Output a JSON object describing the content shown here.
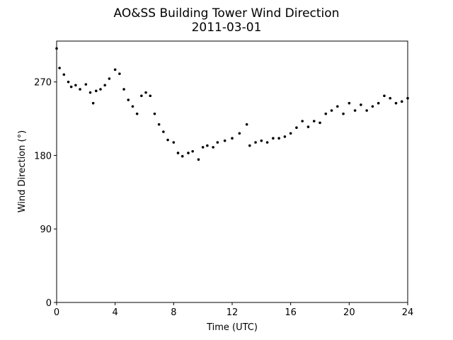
{
  "chart_data": {
    "type": "scatter",
    "title": "AO&SS Building Tower Wind Direction",
    "subtitle": "2011-03-01",
    "x_label": "Time (UTC)",
    "y_label": "Wind Direction (°)",
    "color": "#000000",
    "xlim": [
      0,
      24
    ],
    "xticks": [
      0,
      4,
      8,
      12,
      16,
      20,
      24
    ],
    "ylim": [
      0,
      320
    ],
    "yticks": [
      0,
      90,
      180,
      270
    ],
    "x": [
      0,
      0.2,
      0.5,
      0.8,
      1.0,
      1.3,
      1.6,
      2.0,
      2.3,
      2.5,
      2.7,
      3.0,
      3.3,
      3.6,
      4.0,
      4.3,
      4.6,
      4.9,
      5.2,
      5.5,
      5.8,
      6.1,
      6.4,
      6.7,
      7.0,
      7.3,
      7.6,
      8.0,
      8.3,
      8.6,
      9.0,
      9.3,
      9.7,
      10.0,
      10.3,
      10.7,
      11.0,
      11.5,
      12.0,
      12.5,
      13.0,
      13.2,
      13.6,
      14.0,
      14.4,
      14.8,
      15.2,
      15.6,
      16.0,
      16.4,
      16.8,
      17.2,
      17.6,
      18.0,
      18.4,
      18.8,
      19.2,
      19.6,
      20.0,
      20.4,
      20.8,
      21.2,
      21.6,
      22.0,
      22.4,
      22.8,
      23.2,
      23.6,
      24.0
    ],
    "values": [
      311,
      287,
      279,
      270,
      264,
      266,
      261,
      267,
      257,
      244,
      259,
      261,
      266,
      274,
      285,
      280,
      261,
      248,
      240,
      231,
      253,
      257,
      253,
      231,
      218,
      209,
      199,
      196,
      183,
      179,
      183,
      185,
      175,
      190,
      192,
      190,
      196,
      198,
      201,
      207,
      218,
      192,
      196,
      198,
      196,
      201,
      201,
      203,
      207,
      214,
      222,
      215,
      222,
      220,
      231,
      235,
      240,
      231,
      244,
      235,
      242,
      235,
      240,
      244,
      253,
      250,
      244,
      246,
      250
    ]
  }
}
